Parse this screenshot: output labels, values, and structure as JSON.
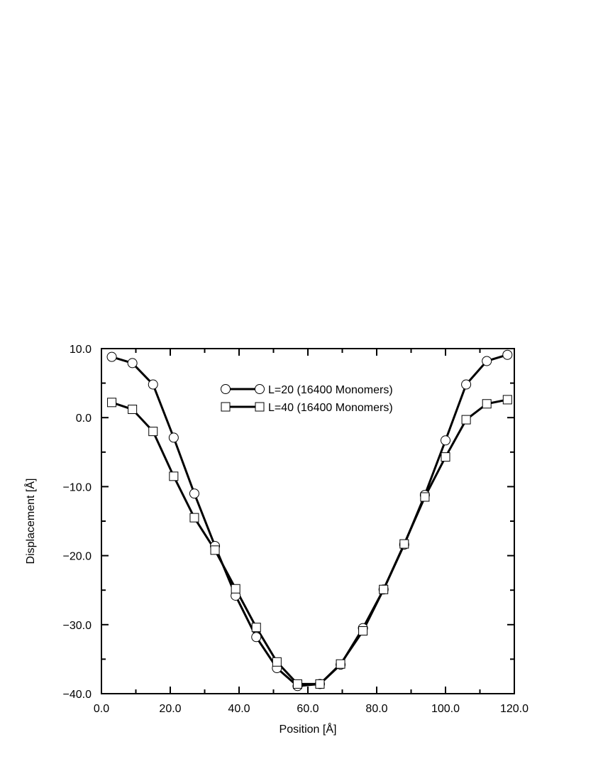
{
  "chart_data": {
    "type": "line",
    "xlabel": "Position [Å]",
    "ylabel": "Displacement [Å]",
    "xlim": [
      0,
      120
    ],
    "ylim": [
      -40,
      10
    ],
    "x_major_ticks": [
      0,
      20,
      40,
      60,
      80,
      100,
      120
    ],
    "x_tick_labels": [
      "0.0",
      "20.0",
      "40.0",
      "60.0",
      "80.0",
      "100.0",
      "120.0"
    ],
    "y_major_ticks": [
      10,
      0,
      -10,
      -20,
      -30,
      -40
    ],
    "y_tick_labels": [
      "10.0",
      "0.0",
      "−10.0",
      "−20.0",
      "−30.0",
      "−40.0"
    ],
    "grid": false,
    "legend_placement": "top-center",
    "series": [
      {
        "name": "L=20 (16400 Monomers)",
        "marker": "circle",
        "x": [
          3,
          9,
          15,
          21,
          27,
          33,
          39,
          45,
          51,
          57,
          63.5,
          69.5,
          76,
          82,
          88,
          94,
          100,
          106,
          112,
          118
        ],
        "y": [
          8.8,
          7.9,
          4.8,
          -2.9,
          -11.0,
          -18.6,
          -25.8,
          -31.8,
          -36.3,
          -38.9,
          -38.6,
          -35.8,
          -30.5,
          -24.9,
          -18.4,
          -11.2,
          -3.3,
          4.8,
          8.2,
          9.1
        ]
      },
      {
        "name": "L=40 (16400 Monomers)",
        "marker": "square",
        "x": [
          3,
          9,
          15,
          21,
          27,
          33,
          39,
          45,
          51,
          57,
          63.5,
          69.5,
          76,
          82,
          88,
          94,
          100,
          106,
          112,
          118
        ],
        "y": [
          2.2,
          1.2,
          -2.0,
          -8.5,
          -14.5,
          -19.2,
          -24.8,
          -30.4,
          -35.4,
          -38.6,
          -38.6,
          -35.7,
          -30.9,
          -24.9,
          -18.3,
          -11.5,
          -5.7,
          -0.3,
          2.0,
          2.6
        ]
      }
    ]
  }
}
